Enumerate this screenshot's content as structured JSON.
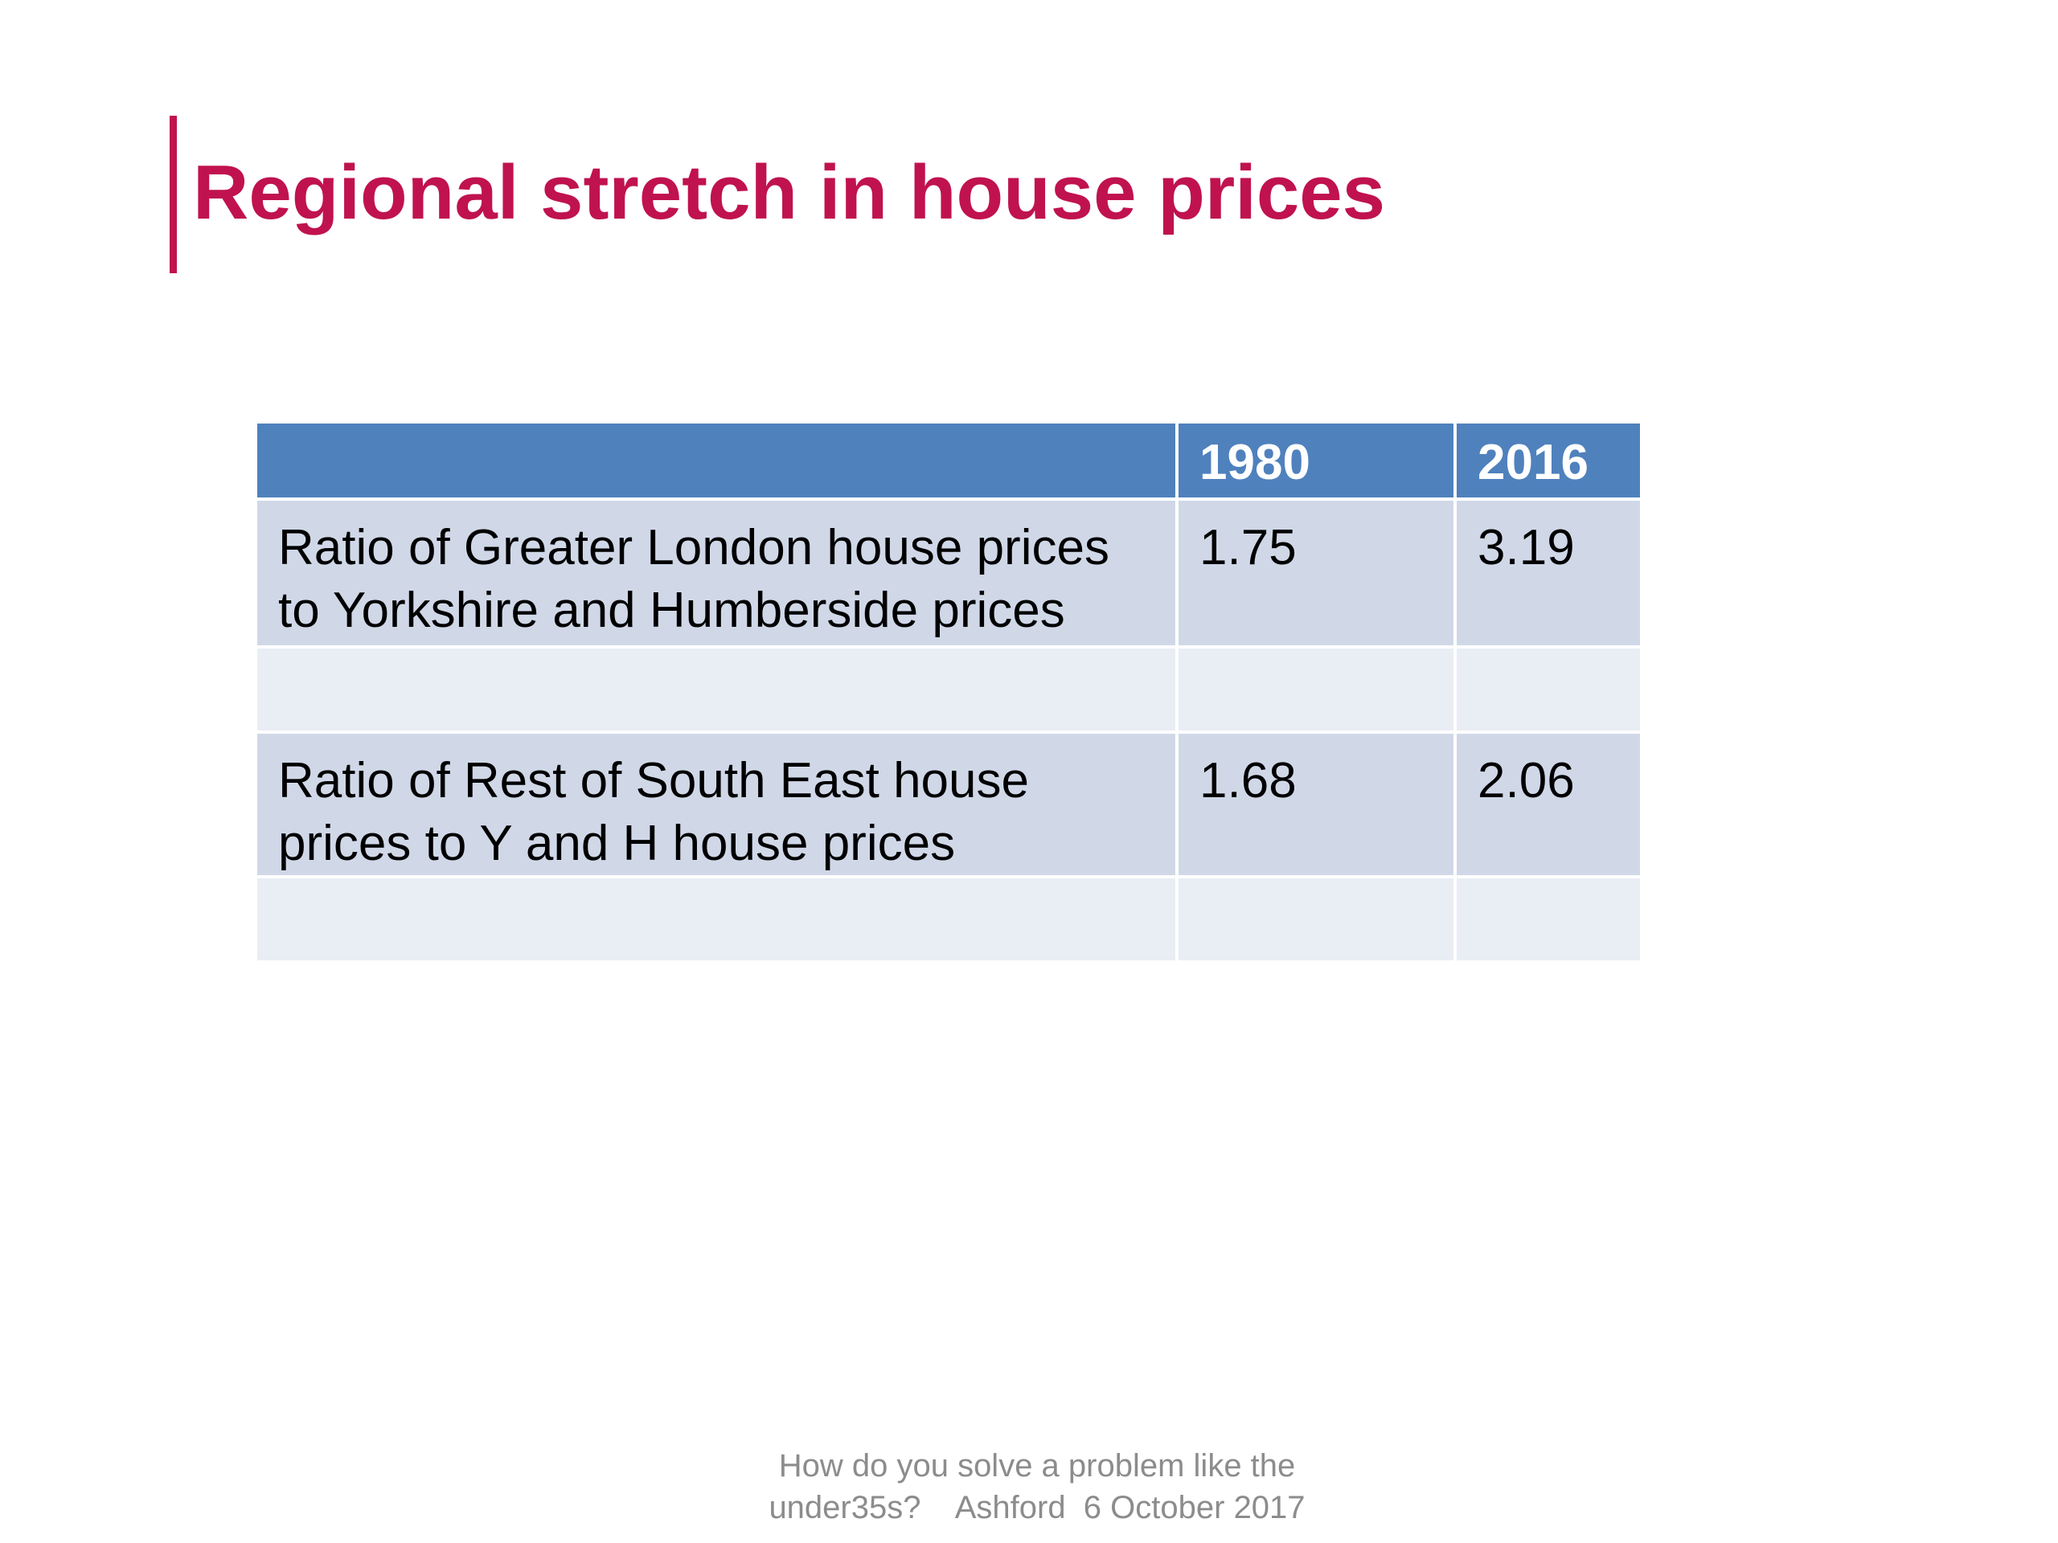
{
  "slide": {
    "title": "Regional stretch in house prices",
    "accent_color": "#c0124f",
    "table": {
      "header_color": "#4f81bd",
      "columns": [
        "",
        "1980",
        "2016"
      ],
      "rows": [
        {
          "label": "Ratio of Greater London house prices to Yorkshire and Humberside prices",
          "v1980": "1.75",
          "v2016": "3.19"
        },
        {
          "label": "",
          "v1980": "",
          "v2016": ""
        },
        {
          "label": "Ratio of Rest of South East house prices to Y and  H house prices",
          "v1980": "1.68",
          "v2016": "2.06"
        },
        {
          "label": "",
          "v1980": "",
          "v2016": ""
        }
      ]
    },
    "footer": {
      "line1": "How do you solve a problem like the",
      "line2": "under35s?    Ashford  6 October 2017"
    }
  }
}
